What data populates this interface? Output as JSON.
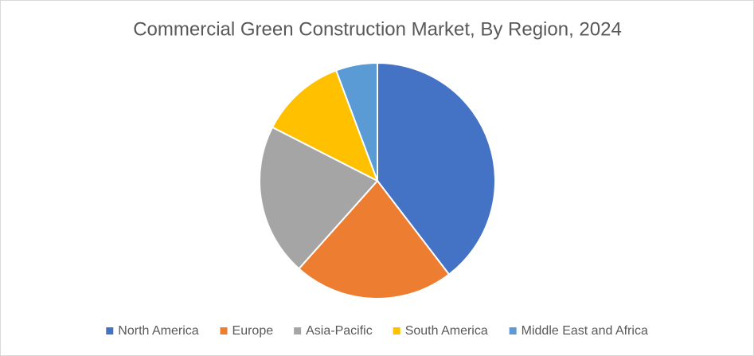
{
  "chart_data": {
    "type": "pie",
    "title": "Commercial Green Construction Market, By Region, 2024",
    "categories": [
      "North America",
      "Europe",
      "Asia-Pacific",
      "South America",
      "Middle East and Africa"
    ],
    "values": [
      39.6,
      22,
      20.9,
      11.8,
      5.7
    ],
    "colors": [
      "#4472c4",
      "#ed7d31",
      "#a5a5a5",
      "#ffc000",
      "#5b9bd5"
    ],
    "legend": "bottom"
  }
}
